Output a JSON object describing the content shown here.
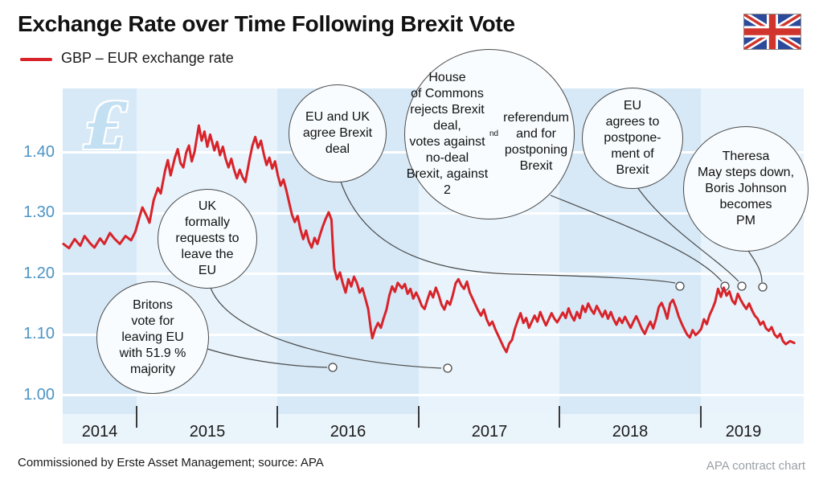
{
  "header": {
    "title": "Exchange Rate over Time Following Brexit Vote",
    "legend": {
      "label": "GBP – EUR exchange rate"
    },
    "flag_icon": "uk-flag-icon"
  },
  "colors": {
    "line_red": "#d8232a",
    "axis_label_blue": "#4d94c4",
    "band_dark": "#d7e9f7",
    "band_light": "#e8f3fb",
    "axis_strip": "#eaf4fb",
    "bubble_fill": "#f8fcfe",
    "bubble_border": "#4a4a4a",
    "watermark_blue": "#c3e0f3",
    "footer_gray": "#9aa0a6",
    "flag_blue": "#2b4a9b",
    "flag_red": "#d0342c"
  },
  "axes": {
    "y_labels": [
      "1.40",
      "1.30",
      "1.20",
      "1.10",
      "1.00"
    ],
    "x_labels": [
      "2014",
      "2015",
      "2016",
      "2017",
      "2018",
      "2019"
    ]
  },
  "watermark": "£",
  "footer": {
    "left": "Commissioned by Erste Asset Management; source: APA",
    "right": "APA contract chart"
  },
  "chart_data": {
    "type": "line",
    "title": "Exchange Rate over Time Following Brexit Vote",
    "xlabel": "",
    "ylabel": "",
    "x_tick_labels": [
      "2014",
      "2015",
      "2016",
      "2017",
      "2018",
      "2019"
    ],
    "y_ticks": [
      1.0,
      1.1,
      1.2,
      1.3,
      1.4
    ],
    "xlim": [
      2014.475,
      2019.727
    ],
    "ylim": [
      0.97,
      1.506
    ],
    "grid": "horizontal-white",
    "legend_position": "top-left",
    "background_bands": "alternating light-blue per year",
    "series": [
      {
        "name": "GBP – EUR exchange rate",
        "color": "#d8232a",
        "points": [
          [
            2014.48,
            1.25
          ],
          [
            2014.52,
            1.243
          ],
          [
            2014.56,
            1.258
          ],
          [
            2014.6,
            1.247
          ],
          [
            2014.63,
            1.263
          ],
          [
            2014.67,
            1.251
          ],
          [
            2014.7,
            1.244
          ],
          [
            2014.74,
            1.259
          ],
          [
            2014.77,
            1.25
          ],
          [
            2014.81,
            1.268
          ],
          [
            2014.84,
            1.259
          ],
          [
            2014.88,
            1.25
          ],
          [
            2014.92,
            1.263
          ],
          [
            2014.96,
            1.256
          ],
          [
            2014.99,
            1.27
          ],
          [
            2015.02,
            1.295
          ],
          [
            2015.04,
            1.31
          ],
          [
            2015.07,
            1.296
          ],
          [
            2015.09,
            1.285
          ],
          [
            2015.12,
            1.322
          ],
          [
            2015.15,
            1.342
          ],
          [
            2015.17,
            1.333
          ],
          [
            2015.2,
            1.37
          ],
          [
            2015.22,
            1.388
          ],
          [
            2015.24,
            1.363
          ],
          [
            2015.27,
            1.392
          ],
          [
            2015.29,
            1.406
          ],
          [
            2015.31,
            1.383
          ],
          [
            2015.33,
            1.376
          ],
          [
            2015.35,
            1.4
          ],
          [
            2015.37,
            1.412
          ],
          [
            2015.39,
            1.386
          ],
          [
            2015.41,
            1.402
          ],
          [
            2015.44,
            1.445
          ],
          [
            2015.46,
            1.42
          ],
          [
            2015.48,
            1.435
          ],
          [
            2015.5,
            1.41
          ],
          [
            2015.52,
            1.43
          ],
          [
            2015.55,
            1.404
          ],
          [
            2015.57,
            1.418
          ],
          [
            2015.59,
            1.396
          ],
          [
            2015.61,
            1.41
          ],
          [
            2015.63,
            1.39
          ],
          [
            2015.65,
            1.376
          ],
          [
            2015.67,
            1.39
          ],
          [
            2015.69,
            1.372
          ],
          [
            2015.71,
            1.358
          ],
          [
            2015.73,
            1.372
          ],
          [
            2015.75,
            1.36
          ],
          [
            2015.77,
            1.352
          ],
          [
            2015.8,
            1.39
          ],
          [
            2015.82,
            1.412
          ],
          [
            2015.84,
            1.426
          ],
          [
            2015.86,
            1.408
          ],
          [
            2015.88,
            1.42
          ],
          [
            2015.9,
            1.398
          ],
          [
            2015.92,
            1.38
          ],
          [
            2015.94,
            1.392
          ],
          [
            2015.96,
            1.374
          ],
          [
            2015.98,
            1.386
          ],
          [
            2016.0,
            1.363
          ],
          [
            2016.02,
            1.346
          ],
          [
            2016.04,
            1.356
          ],
          [
            2016.06,
            1.338
          ],
          [
            2016.08,
            1.318
          ],
          [
            2016.1,
            1.298
          ],
          [
            2016.12,
            1.286
          ],
          [
            2016.14,
            1.296
          ],
          [
            2016.16,
            1.274
          ],
          [
            2016.18,
            1.258
          ],
          [
            2016.2,
            1.272
          ],
          [
            2016.22,
            1.254
          ],
          [
            2016.24,
            1.244
          ],
          [
            2016.26,
            1.26
          ],
          [
            2016.28,
            1.25
          ],
          [
            2016.3,
            1.266
          ],
          [
            2016.32,
            1.28
          ],
          [
            2016.34,
            1.292
          ],
          [
            2016.36,
            1.302
          ],
          [
            2016.38,
            1.29
          ],
          [
            2016.39,
            1.245
          ],
          [
            2016.4,
            1.21
          ],
          [
            2016.42,
            1.192
          ],
          [
            2016.44,
            1.203
          ],
          [
            2016.46,
            1.185
          ],
          [
            2016.48,
            1.17
          ],
          [
            2016.5,
            1.192
          ],
          [
            2016.52,
            1.18
          ],
          [
            2016.54,
            1.196
          ],
          [
            2016.56,
            1.186
          ],
          [
            2016.58,
            1.17
          ],
          [
            2016.6,
            1.177
          ],
          [
            2016.62,
            1.16
          ],
          [
            2016.64,
            1.143
          ],
          [
            2016.66,
            1.108
          ],
          [
            2016.67,
            1.095
          ],
          [
            2016.69,
            1.11
          ],
          [
            2016.71,
            1.12
          ],
          [
            2016.73,
            1.112
          ],
          [
            2016.75,
            1.128
          ],
          [
            2016.77,
            1.142
          ],
          [
            2016.79,
            1.165
          ],
          [
            2016.81,
            1.18
          ],
          [
            2016.83,
            1.171
          ],
          [
            2016.85,
            1.186
          ],
          [
            2016.88,
            1.177
          ],
          [
            2016.9,
            1.184
          ],
          [
            2016.92,
            1.168
          ],
          [
            2016.94,
            1.176
          ],
          [
            2016.96,
            1.16
          ],
          [
            2016.98,
            1.17
          ],
          [
            2017.0,
            1.16
          ],
          [
            2017.02,
            1.148
          ],
          [
            2017.04,
            1.143
          ],
          [
            2017.06,
            1.158
          ],
          [
            2017.08,
            1.172
          ],
          [
            2017.1,
            1.162
          ],
          [
            2017.12,
            1.178
          ],
          [
            2017.14,
            1.166
          ],
          [
            2017.16,
            1.15
          ],
          [
            2017.18,
            1.142
          ],
          [
            2017.2,
            1.156
          ],
          [
            2017.22,
            1.15
          ],
          [
            2017.24,
            1.166
          ],
          [
            2017.26,
            1.185
          ],
          [
            2017.28,
            1.192
          ],
          [
            2017.3,
            1.182
          ],
          [
            2017.32,
            1.176
          ],
          [
            2017.34,
            1.188
          ],
          [
            2017.36,
            1.17
          ],
          [
            2017.38,
            1.16
          ],
          [
            2017.4,
            1.15
          ],
          [
            2017.42,
            1.14
          ],
          [
            2017.44,
            1.132
          ],
          [
            2017.46,
            1.142
          ],
          [
            2017.48,
            1.126
          ],
          [
            2017.5,
            1.116
          ],
          [
            2017.52,
            1.122
          ],
          [
            2017.54,
            1.11
          ],
          [
            2017.56,
            1.1
          ],
          [
            2017.58,
            1.09
          ],
          [
            2017.6,
            1.08
          ],
          [
            2017.62,
            1.072
          ],
          [
            2017.64,
            1.086
          ],
          [
            2017.66,
            1.092
          ],
          [
            2017.68,
            1.11
          ],
          [
            2017.7,
            1.124
          ],
          [
            2017.72,
            1.136
          ],
          [
            2017.74,
            1.12
          ],
          [
            2017.76,
            1.128
          ],
          [
            2017.78,
            1.112
          ],
          [
            2017.8,
            1.122
          ],
          [
            2017.82,
            1.132
          ],
          [
            2017.84,
            1.122
          ],
          [
            2017.86,
            1.138
          ],
          [
            2017.88,
            1.126
          ],
          [
            2017.9,
            1.116
          ],
          [
            2017.92,
            1.126
          ],
          [
            2017.94,
            1.136
          ],
          [
            2017.96,
            1.127
          ],
          [
            2017.98,
            1.121
          ],
          [
            2018.0,
            1.129
          ],
          [
            2018.02,
            1.137
          ],
          [
            2018.04,
            1.128
          ],
          [
            2018.06,
            1.144
          ],
          [
            2018.08,
            1.132
          ],
          [
            2018.1,
            1.124
          ],
          [
            2018.12,
            1.138
          ],
          [
            2018.14,
            1.128
          ],
          [
            2018.16,
            1.148
          ],
          [
            2018.18,
            1.138
          ],
          [
            2018.2,
            1.152
          ],
          [
            2018.22,
            1.142
          ],
          [
            2018.24,
            1.135
          ],
          [
            2018.26,
            1.148
          ],
          [
            2018.28,
            1.139
          ],
          [
            2018.3,
            1.13
          ],
          [
            2018.32,
            1.14
          ],
          [
            2018.34,
            1.127
          ],
          [
            2018.36,
            1.138
          ],
          [
            2018.38,
            1.126
          ],
          [
            2018.4,
            1.117
          ],
          [
            2018.42,
            1.128
          ],
          [
            2018.44,
            1.12
          ],
          [
            2018.46,
            1.13
          ],
          [
            2018.48,
            1.121
          ],
          [
            2018.5,
            1.112
          ],
          [
            2018.52,
            1.122
          ],
          [
            2018.54,
            1.131
          ],
          [
            2018.56,
            1.121
          ],
          [
            2018.58,
            1.11
          ],
          [
            2018.6,
            1.102
          ],
          [
            2018.62,
            1.113
          ],
          [
            2018.64,
            1.122
          ],
          [
            2018.66,
            1.111
          ],
          [
            2018.68,
            1.126
          ],
          [
            2018.7,
            1.146
          ],
          [
            2018.72,
            1.153
          ],
          [
            2018.74,
            1.142
          ],
          [
            2018.76,
            1.127
          ],
          [
            2018.78,
            1.152
          ],
          [
            2018.8,
            1.158
          ],
          [
            2018.82,
            1.146
          ],
          [
            2018.84,
            1.131
          ],
          [
            2018.86,
            1.12
          ],
          [
            2018.88,
            1.11
          ],
          [
            2018.9,
            1.101
          ],
          [
            2018.92,
            1.096
          ],
          [
            2018.94,
            1.108
          ],
          [
            2018.96,
            1.1
          ],
          [
            2018.98,
            1.104
          ],
          [
            2019.0,
            1.11
          ],
          [
            2019.02,
            1.126
          ],
          [
            2019.04,
            1.118
          ],
          [
            2019.06,
            1.133
          ],
          [
            2019.08,
            1.143
          ],
          [
            2019.1,
            1.155
          ],
          [
            2019.12,
            1.176
          ],
          [
            2019.14,
            1.163
          ],
          [
            2019.16,
            1.178
          ],
          [
            2019.18,
            1.165
          ],
          [
            2019.2,
            1.172
          ],
          [
            2019.22,
            1.157
          ],
          [
            2019.24,
            1.151
          ],
          [
            2019.26,
            1.168
          ],
          [
            2019.28,
            1.158
          ],
          [
            2019.3,
            1.15
          ],
          [
            2019.32,
            1.143
          ],
          [
            2019.34,
            1.152
          ],
          [
            2019.36,
            1.141
          ],
          [
            2019.38,
            1.132
          ],
          [
            2019.4,
            1.127
          ],
          [
            2019.42,
            1.117
          ],
          [
            2019.44,
            1.122
          ],
          [
            2019.46,
            1.111
          ],
          [
            2019.48,
            1.107
          ],
          [
            2019.5,
            1.113
          ],
          [
            2019.52,
            1.101
          ],
          [
            2019.54,
            1.096
          ],
          [
            2019.56,
            1.102
          ],
          [
            2019.58,
            1.09
          ],
          [
            2019.6,
            1.085
          ],
          [
            2019.63,
            1.09
          ],
          [
            2019.66,
            1.087
          ]
        ]
      }
    ],
    "annotations": [
      {
        "id": "britons-vote",
        "text": "Britons\nvote for\nleaving EU\nwith 51.9 %\nmajority"
      },
      {
        "id": "uk-article50",
        "text": "UK\nformally\nrequests to\nleave the\nEU"
      },
      {
        "id": "eu-uk-deal",
        "text": "EU and UK\nagree Brexit\ndeal"
      },
      {
        "id": "commons-rejects",
        "text": "House\nof Commons\nrejects Brexit deal,\nvotes against no-deal\nBrexit, against 2^{nd}\nreferendum and for\npostponing\nBrexit"
      },
      {
        "id": "eu-postponement",
        "text": "EU\nagrees to\npostpone-\nment of\nBrexit"
      },
      {
        "id": "may-johnson",
        "text": "Theresa\nMay steps down,\nBoris Johnson\nbecomes\nPM"
      }
    ]
  }
}
